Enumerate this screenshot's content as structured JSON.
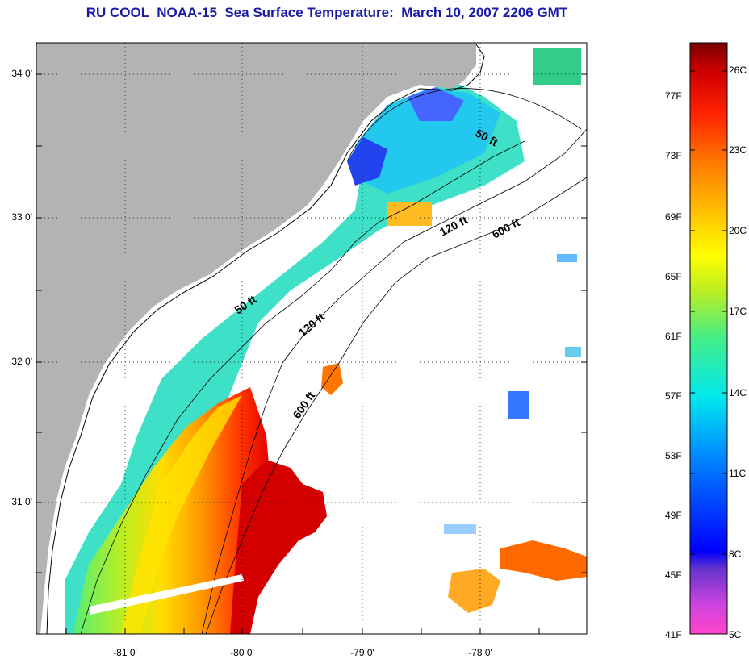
{
  "title": "RU COOL  NOAA-15  Sea Surface Temperature:  March 10, 2007 2206 GMT",
  "map": {
    "lat_labels": [
      "34 0'",
      "33 0'",
      "32 0'",
      "31 0'"
    ],
    "lon_labels": [
      "-81 0'",
      "-80 0'",
      "-79 0'",
      "-78 0'"
    ],
    "contour_labels": [
      "50 ft",
      "50 ft",
      "120 ft",
      "120 ft",
      "600 ft",
      "600 ft"
    ],
    "colors": {
      "land": "#b3b3b3",
      "nodata": "#ffffff"
    }
  },
  "colorbar": {
    "fahrenheit_labels": [
      "77F",
      "73F",
      "69F",
      "65F",
      "61F",
      "57F",
      "53F",
      "49F",
      "45F",
      "41F"
    ],
    "celsius_labels": [
      "26C",
      "23C",
      "20C",
      "17C",
      "14C",
      "11C",
      "8C",
      "5C"
    ],
    "stops": [
      "#ff44cc",
      "#cc44dd",
      "#7a33cc",
      "#0000ff",
      "#0088ff",
      "#00e8ee",
      "#44ee88",
      "#bbee22",
      "#ffff00",
      "#ffbb00",
      "#ff7700",
      "#ff2200",
      "#d00000",
      "#7a0000"
    ]
  }
}
